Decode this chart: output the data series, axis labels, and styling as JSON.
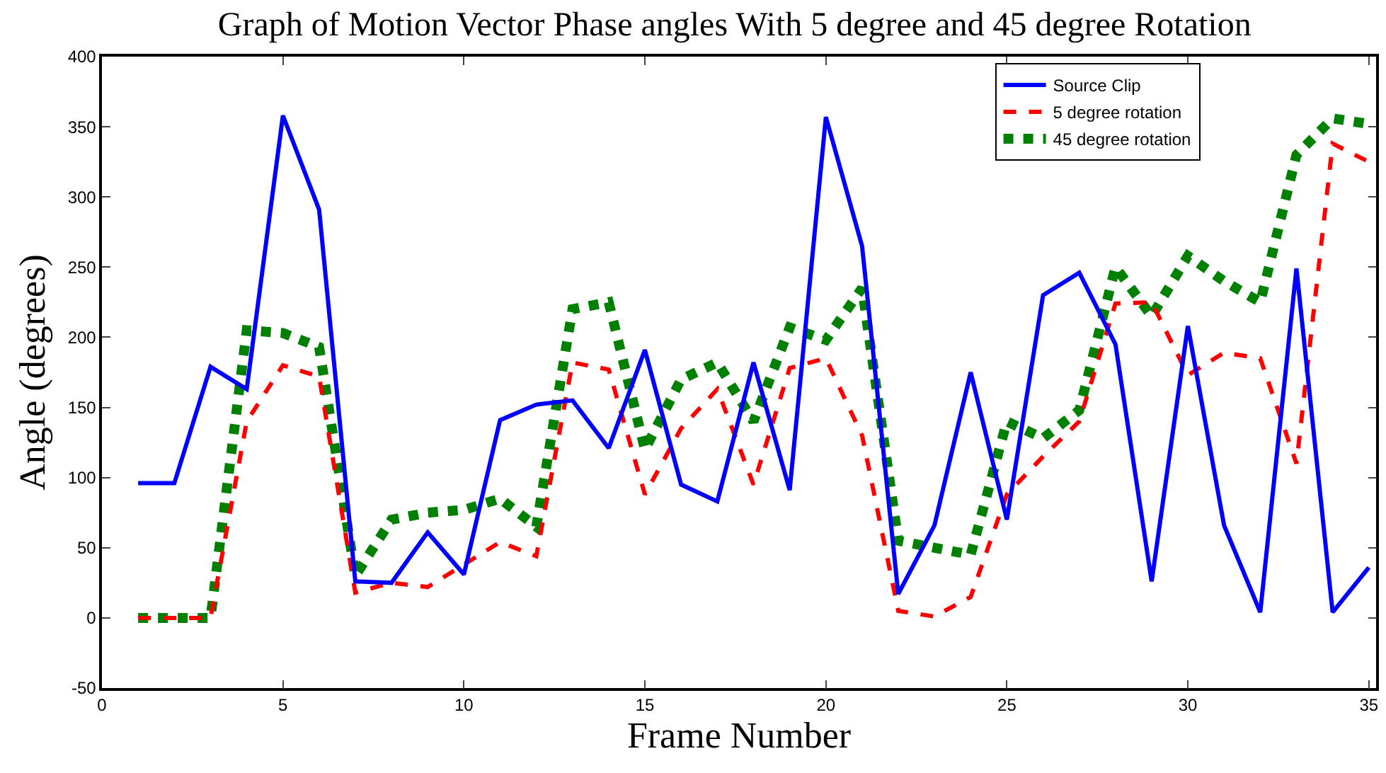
{
  "chart_data": {
    "type": "line",
    "title": "Graph of Motion Vector Phase angles With 5 degree and 45 degree Rotation",
    "xlabel": "Frame Number",
    "ylabel": "Angle (degrees)",
    "x": [
      1,
      2,
      3,
      4,
      5,
      6,
      7,
      8,
      9,
      10,
      11,
      12,
      13,
      14,
      15,
      16,
      17,
      18,
      19,
      20,
      21,
      22,
      23,
      24,
      25,
      26,
      27,
      28,
      29,
      30,
      31,
      32,
      33,
      34,
      35
    ],
    "series": [
      {
        "name": "Source Clip",
        "color": "#0000ff",
        "line_style": "solid",
        "values": [
          96,
          96,
          179,
          163,
          358,
          291,
          26,
          25,
          61,
          31,
          141,
          152,
          155,
          121,
          191,
          95,
          83,
          182,
          91,
          357,
          265,
          17,
          66,
          175,
          70,
          230,
          246,
          195,
          26,
          208,
          66,
          4,
          249,
          4,
          36
        ]
      },
      {
        "name": "5 degree rotation",
        "color": "#ff0000",
        "line_style": "dashed",
        "values": [
          0,
          0,
          0,
          140,
          180,
          172,
          18,
          25,
          22,
          38,
          54,
          44,
          182,
          177,
          88,
          135,
          163,
          95,
          178,
          185,
          130,
          5,
          1,
          15,
          88,
          115,
          140,
          224,
          225,
          173,
          189,
          185,
          110,
          338,
          325
        ]
      },
      {
        "name": "45 degree rotation",
        "color": "#008000",
        "line_style": "dotted",
        "values": [
          0,
          0,
          0,
          205,
          203,
          193,
          30,
          70,
          75,
          77,
          85,
          65,
          220,
          225,
          120,
          170,
          182,
          140,
          207,
          198,
          235,
          55,
          50,
          45,
          140,
          128,
          148,
          250,
          215,
          258,
          240,
          225,
          330,
          356,
          352
        ]
      }
    ],
    "xlim": [
      0,
      35.2
    ],
    "xticks": [
      0,
      5,
      10,
      15,
      20,
      25,
      30,
      35
    ],
    "ylim": [
      -50,
      400
    ],
    "yticks": [
      -50,
      0,
      50,
      100,
      150,
      200,
      250,
      300,
      350,
      400
    ],
    "grid": false,
    "legend": "top right",
    "marker": "none"
  }
}
